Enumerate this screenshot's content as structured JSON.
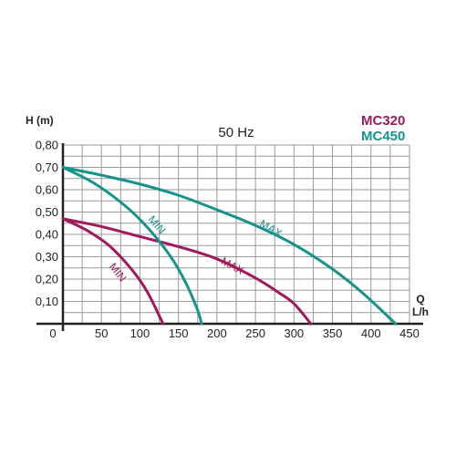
{
  "chart_data": {
    "type": "line",
    "title": "50 Hz",
    "ylabel": "H (m)",
    "xlabel": "Q",
    "xunit": "L/h",
    "xlim": [
      0,
      450
    ],
    "ylim": [
      0,
      0.8
    ],
    "grid": true,
    "xticks": [
      "0",
      "50",
      "100",
      "150",
      "200",
      "250",
      "300",
      "350",
      "400",
      "450"
    ],
    "yticks": [
      "0,10",
      "0,20",
      "0,30",
      "0,40",
      "0,50",
      "0,60",
      "0,70",
      "0,80"
    ],
    "legend": [
      {
        "label": "MC320",
        "color": "#a2195b"
      },
      {
        "label": "MC450",
        "color": "#16938a"
      }
    ],
    "series": [
      {
        "name": "MC320",
        "label": "MIN",
        "color": "#a2195b",
        "x": [
          0,
          30,
          60,
          90,
          110,
          130
        ],
        "y": [
          0.47,
          0.42,
          0.35,
          0.24,
          0.14,
          0
        ]
      },
      {
        "name": "MC320",
        "label": "MAX",
        "color": "#a2195b",
        "x": [
          0,
          50,
          100,
          150,
          200,
          250,
          280,
          300,
          322
        ],
        "y": [
          0.47,
          0.435,
          0.39,
          0.345,
          0.29,
          0.205,
          0.14,
          0.09,
          0
        ]
      },
      {
        "name": "MC450",
        "label": "MIN",
        "color": "#16938a",
        "x": [
          0,
          40,
          80,
          110,
          140,
          160,
          175,
          180
        ],
        "y": [
          0.7,
          0.63,
          0.53,
          0.43,
          0.3,
          0.18,
          0.06,
          0
        ]
      },
      {
        "name": "MC450",
        "label": "MAX",
        "color": "#16938a",
        "x": [
          0,
          50,
          100,
          150,
          200,
          250,
          300,
          350,
          390,
          432
        ],
        "y": [
          0.7,
          0.665,
          0.625,
          0.575,
          0.51,
          0.44,
          0.355,
          0.245,
          0.135,
          0
        ]
      }
    ]
  }
}
